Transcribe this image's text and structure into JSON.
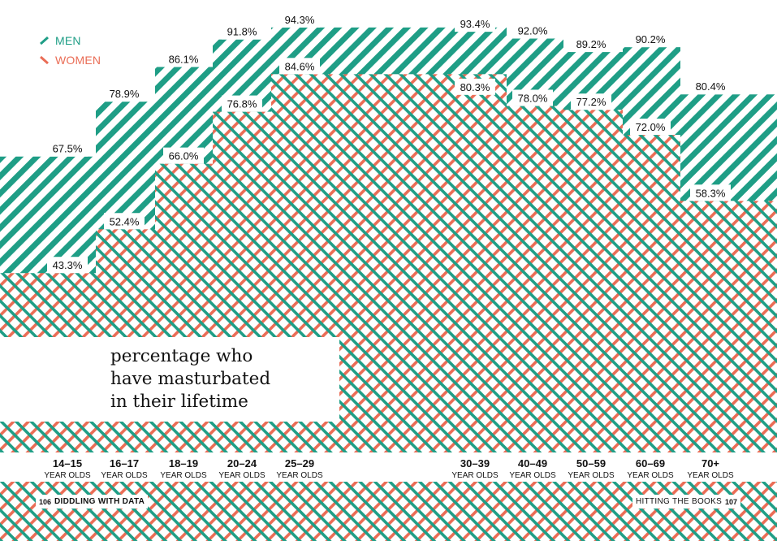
{
  "legend": {
    "men": {
      "label": "MEN",
      "color": "#1f9e86"
    },
    "women": {
      "label": "WOMEN",
      "color": "#ea6d56"
    }
  },
  "caption": {
    "line1": "percentage who",
    "line2": "have masturbated",
    "line3": "in their lifetime"
  },
  "footer": {
    "left_page": "106",
    "left_section": "DIDDLING WITH DATA",
    "right_section": "HITTING THE BOOKS",
    "right_page": "107"
  },
  "chart_data": {
    "type": "area",
    "title": "percentage who have masturbated in their lifetime",
    "categories": [
      "14–15",
      "16–17",
      "18–19",
      "20–24",
      "25–29",
      "30–39",
      "40–49",
      "50–59",
      "60–69",
      "70+"
    ],
    "category_sublabel": "YEAR OLDS",
    "series": [
      {
        "name": "MEN",
        "values": [
          67.5,
          78.9,
          86.1,
          91.8,
          94.3,
          93.4,
          92.0,
          89.2,
          90.2,
          80.4
        ],
        "labels": [
          "67.5%",
          "78.9%",
          "86.1%",
          "91.8%",
          "94.3%",
          "93.4%",
          "92.0%",
          "89.2%",
          "90.2%",
          "80.4%"
        ]
      },
      {
        "name": "WOMEN",
        "values": [
          43.3,
          52.4,
          66.0,
          76.8,
          84.6,
          80.3,
          78.0,
          77.2,
          72.0,
          58.3
        ],
        "labels": [
          "43.3%",
          "52.4%",
          "66.0%",
          "76.8%",
          "84.6%",
          "80.3%",
          "78.0%",
          "77.2%",
          "72.0%",
          "58.3%"
        ]
      }
    ],
    "ylim": [
      0,
      100
    ],
    "grid": false,
    "legend_position": "top-left"
  }
}
